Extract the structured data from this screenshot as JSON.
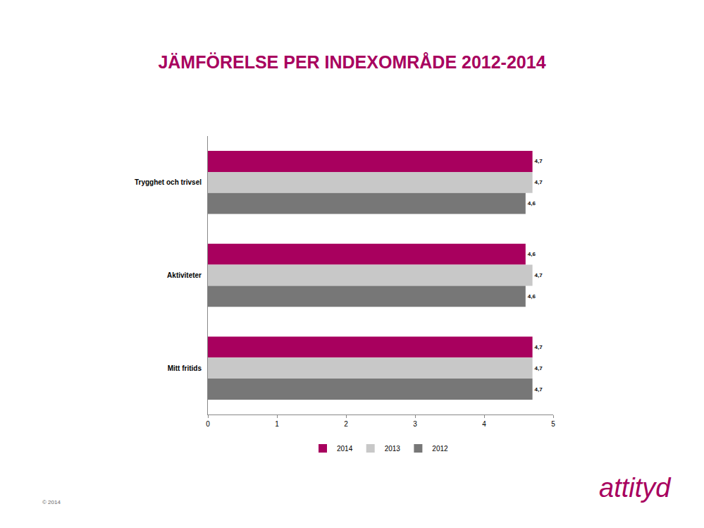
{
  "chart_data": {
    "type": "bar",
    "title": "JÄMFÖRELSE PER INDEXOMRÅDE 2012-2014",
    "orientation": "horizontal",
    "categories": [
      "Trygghet och trivsel",
      "Aktiviteter",
      "Mitt fritids"
    ],
    "series": [
      {
        "name": "2014",
        "color": "#a8005e",
        "values": [
          4.7,
          4.6,
          4.7
        ],
        "value_labels": [
          "4,7",
          "4,6",
          "4,7"
        ]
      },
      {
        "name": "2013",
        "color": "#c8c8c8",
        "values": [
          4.7,
          4.7,
          4.7
        ],
        "value_labels": [
          "4,7",
          "4,7",
          "4,7"
        ]
      },
      {
        "name": "2012",
        "color": "#777777",
        "values": [
          4.6,
          4.6,
          4.7
        ],
        "value_labels": [
          "4,6",
          "4,6",
          "4,7"
        ]
      }
    ],
    "xlim": [
      0,
      5
    ],
    "xticks": [
      0,
      1,
      2,
      3,
      4,
      5
    ],
    "grid": false,
    "legend": "bottom",
    "data_labels": true,
    "annotations": [
      "© 2014",
      "attityd"
    ]
  }
}
